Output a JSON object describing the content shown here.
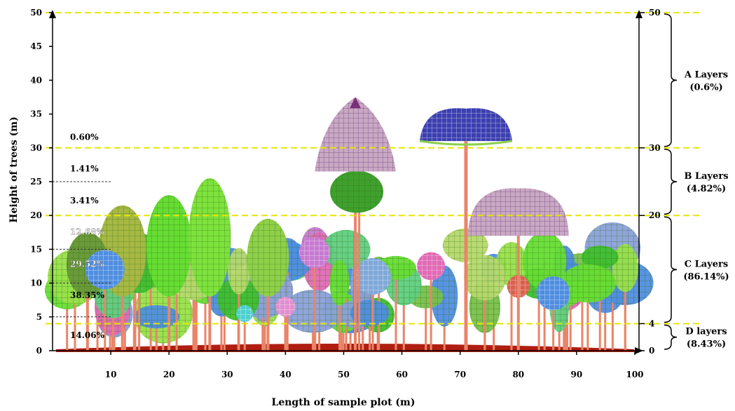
{
  "axes": {
    "xlabel": "Length of sample plot (m)",
    "ylabel": "Height of trees (m)",
    "xlim": [
      0,
      100
    ],
    "ylim": [
      0,
      50
    ],
    "x_ticks": [
      10,
      20,
      30,
      40,
      50,
      60,
      70,
      80,
      90,
      100
    ],
    "y_ticks": [
      0,
      5,
      10,
      15,
      20,
      25,
      30,
      35,
      40,
      45,
      50
    ],
    "right_ticks": [
      {
        "value": 50,
        "label": "50"
      },
      {
        "value": 30,
        "label": "30"
      },
      {
        "value": 20,
        "label": "20"
      },
      {
        "value": 4,
        "label": "4"
      },
      {
        "value": 0,
        "label": "0"
      }
    ]
  },
  "guide_lines": [
    50,
    30,
    20,
    4
  ],
  "height_class_shares": [
    {
      "label": "0.60%",
      "height": 31.6,
      "color": "#000000"
    },
    {
      "label": "1.41%",
      "height": 26.9,
      "color": "#000000"
    },
    {
      "label": "3.41%",
      "height": 22.2,
      "color": "#000000"
    },
    {
      "label": "12.68%",
      "height": 17.6,
      "color": "#ffffff"
    },
    {
      "label": "29.52%",
      "height": 12.8,
      "color": "#ffffff"
    },
    {
      "label": "38.35%",
      "height": 8.2,
      "color": "#000000"
    },
    {
      "label": "14.06%",
      "height": 2.3,
      "color": "#000000"
    }
  ],
  "layers": [
    {
      "name": "A Layers",
      "share": "(0.6%)",
      "from": 30,
      "to": 50
    },
    {
      "name": "B Layers",
      "share": "(4.82%)",
      "from": 20,
      "to": 30
    },
    {
      "name": "C Layers",
      "share": "(86.14%)",
      "from": 4,
      "to": 20
    },
    {
      "name": "D layers",
      "share": "(8.43%)",
      "from": 0,
      "to": 4
    }
  ],
  "colors": {
    "guide": "#e6e600",
    "trunk": "#e9856a",
    "ground": "#b01e12",
    "crowns": [
      "#66dd33",
      "#99e04a",
      "#3fbf2e",
      "#b5d86c",
      "#4f8ee0",
      "#c77ad1",
      "#8aa0d8",
      "#e06ab5",
      "#77c04a",
      "#5fcf7f"
    ],
    "dome_mauve": "#c9a8c4",
    "dome_blue": "#3c3fb0"
  }
}
